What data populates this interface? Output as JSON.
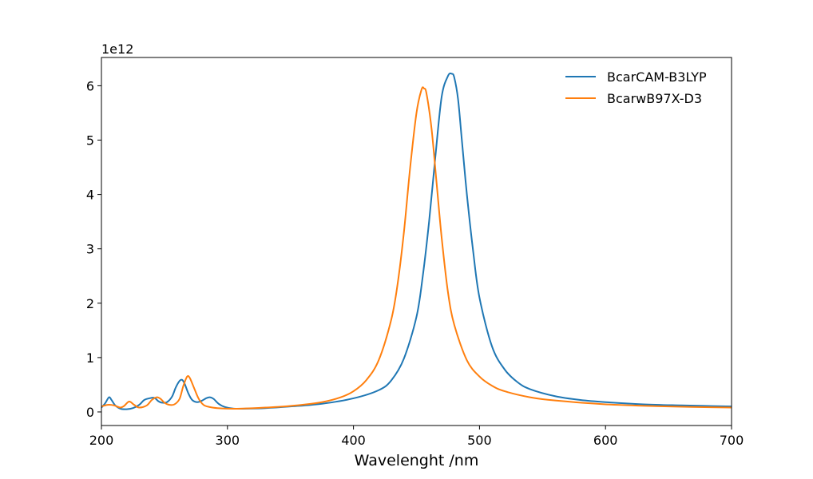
{
  "chart_data": {
    "type": "line",
    "title": "",
    "xlabel": "Wavelenght /nm",
    "ylabel": "",
    "y_offset_text": "1e12",
    "xlim": [
      200,
      700
    ],
    "ylim": [
      -0.25,
      6.52
    ],
    "x_ticks": [
      200,
      300,
      400,
      500,
      600,
      700
    ],
    "y_ticks": [
      0,
      1,
      2,
      3,
      4,
      5,
      6
    ],
    "grid": false,
    "legend_position": "upper right",
    "series": [
      {
        "name": "BcarCAM-B3LYP",
        "color": "#1f77b4",
        "x": [
          200,
          203,
          206,
          208,
          211,
          215,
          220,
          225,
          230,
          234,
          238,
          242,
          245,
          248,
          252,
          256,
          259,
          262,
          264,
          266,
          269,
          272,
          276,
          280,
          283,
          286,
          289,
          293,
          298,
          305,
          315,
          330,
          350,
          375,
          400,
          420,
          430,
          440,
          450,
          455,
          460,
          465,
          470,
          475,
          478,
          480,
          483,
          486,
          490,
          495,
          500,
          510,
          520,
          530,
          540,
          560,
          580,
          600,
          630,
          660,
          700
        ],
        "values": [
          0.08,
          0.16,
          0.27,
          0.22,
          0.12,
          0.06,
          0.05,
          0.07,
          0.13,
          0.22,
          0.25,
          0.26,
          0.2,
          0.17,
          0.18,
          0.28,
          0.45,
          0.57,
          0.59,
          0.52,
          0.34,
          0.22,
          0.18,
          0.21,
          0.25,
          0.27,
          0.24,
          0.15,
          0.09,
          0.06,
          0.06,
          0.07,
          0.1,
          0.15,
          0.25,
          0.4,
          0.58,
          0.98,
          1.75,
          2.5,
          3.5,
          4.7,
          5.8,
          6.18,
          6.22,
          6.15,
          5.75,
          5.0,
          4.0,
          2.95,
          2.1,
          1.2,
          0.78,
          0.55,
          0.42,
          0.29,
          0.22,
          0.18,
          0.14,
          0.12,
          0.1
        ]
      },
      {
        "name": "BcarwB97X-D3",
        "color": "#ff7f0e",
        "x": [
          200,
          205,
          210,
          215,
          218,
          222,
          226,
          230,
          236,
          240,
          244,
          247,
          250,
          254,
          258,
          262,
          265,
          268,
          270,
          273,
          277,
          281,
          286,
          292,
          300,
          310,
          330,
          350,
          375,
          390,
          400,
          410,
          420,
          430,
          435,
          440,
          445,
          450,
          454,
          456,
          458,
          462,
          466,
          470,
          475,
          480,
          490,
          500,
          510,
          520,
          540,
          560,
          600,
          650,
          700
        ],
        "values": [
          0.1,
          0.13,
          0.12,
          0.08,
          0.11,
          0.19,
          0.13,
          0.08,
          0.12,
          0.22,
          0.27,
          0.24,
          0.17,
          0.13,
          0.14,
          0.24,
          0.48,
          0.65,
          0.63,
          0.47,
          0.25,
          0.13,
          0.09,
          0.07,
          0.06,
          0.06,
          0.08,
          0.11,
          0.18,
          0.27,
          0.38,
          0.58,
          0.95,
          1.7,
          2.35,
          3.3,
          4.5,
          5.5,
          5.93,
          5.95,
          5.85,
          5.2,
          4.2,
          3.2,
          2.2,
          1.6,
          0.95,
          0.65,
          0.48,
          0.38,
          0.27,
          0.21,
          0.14,
          0.1,
          0.08
        ]
      }
    ]
  }
}
